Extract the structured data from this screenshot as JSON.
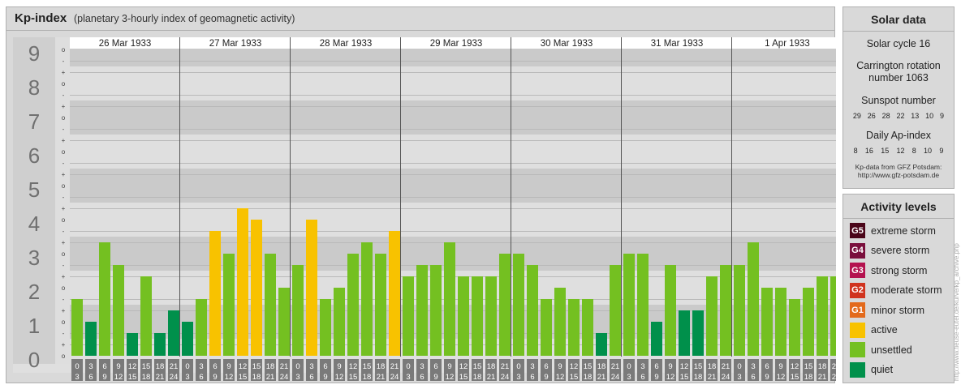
{
  "title": {
    "main": "Kp-index",
    "sub": "(planetary 3-hourly index of geomagnetic activity)"
  },
  "chart_data": {
    "type": "bar",
    "ylim": [
      0,
      9
    ],
    "y_ticks": [
      "0",
      "1",
      "2",
      "3",
      "4",
      "5",
      "6",
      "7",
      "8",
      "9"
    ],
    "minor_tick_labels": [
      "o",
      "+",
      "-",
      "o",
      "+",
      "-",
      "o",
      "+",
      "-",
      "o",
      "+",
      "-",
      "o",
      "+",
      "-",
      "o",
      "+",
      "-",
      "o",
      "+",
      "-",
      "o",
      "+",
      "-",
      "o",
      "+",
      "-",
      "o"
    ],
    "days": [
      "26 Mar 1933",
      "27 Mar 1933",
      "28 Mar 1933",
      "29 Mar 1933",
      "30 Mar 1933",
      "31 Mar 1933",
      "1 Apr 1933"
    ],
    "hour_labels": [
      [
        "0",
        "3"
      ],
      [
        "3",
        "6"
      ],
      [
        "6",
        "9"
      ],
      [
        "9",
        "12"
      ],
      [
        "12",
        "15"
      ],
      [
        "15",
        "18"
      ],
      [
        "18",
        "21"
      ],
      [
        "21",
        "24"
      ]
    ],
    "values": [
      1.667,
      1,
      3.333,
      2.667,
      0.667,
      2.333,
      0.667,
      1.333,
      1,
      1.667,
      3.667,
      3,
      4.333,
      4,
      3,
      2,
      2.667,
      4,
      1.667,
      2,
      3,
      3.333,
      3,
      3.667,
      2.333,
      2.667,
      2.667,
      3.333,
      2.333,
      2.333,
      2.333,
      3,
      3,
      2.667,
      1.667,
      2,
      1.667,
      1.667,
      0.667,
      2.667,
      3,
      3,
      1,
      2.667,
      1.333,
      1.333,
      2.333,
      2.667,
      2.667,
      3.333,
      2,
      2,
      1.667,
      2,
      2.333,
      2.333
    ],
    "levels": {
      "quiet": {
        "label": "quiet",
        "color": "#00904b"
      },
      "unsettled": {
        "label": "unsettled",
        "color": "#74c021"
      },
      "active": {
        "label": "active",
        "color": "#f8c200"
      },
      "g1": {
        "label": "minor storm",
        "color": "#e36a1c",
        "badge": "G1"
      },
      "g2": {
        "label": "moderate storm",
        "color": "#d0331e",
        "badge": "G2"
      },
      "g3": {
        "label": "strong storm",
        "color": "#b4124f",
        "badge": "G3"
      },
      "g4": {
        "label": "severe storm",
        "color": "#7a0f3c",
        "badge": "G4"
      },
      "g5": {
        "label": "extreme storm",
        "color": "#4a0519",
        "badge": "G5"
      }
    }
  },
  "solar": {
    "title": "Solar data",
    "cycle": "Solar cycle 16",
    "carrington_1": "Carrington rotation",
    "carrington_2": "number 1063",
    "sunspot_title": "Sunspot number",
    "sunspots": [
      "29",
      "26",
      "28",
      "22",
      "13",
      "10",
      "9"
    ],
    "ap_title": "Daily Ap-index",
    "ap": [
      "8",
      "16",
      "15",
      "12",
      "8",
      "10",
      "9"
    ],
    "source_1": "Kp-data from GFZ Potsdam:",
    "source_2": "http://www.gfz-potsdam.de"
  },
  "activity": {
    "title": "Activity levels"
  },
  "watermark": "http://www.tieuse-eutel.de/kurve/kp_archive.php"
}
